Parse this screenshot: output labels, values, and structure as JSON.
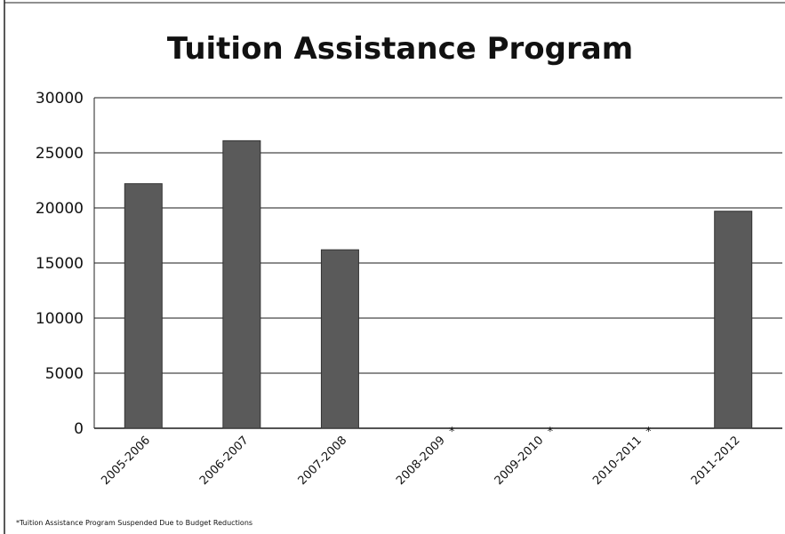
{
  "chart_data": {
    "type": "bar",
    "title": "Tuition Assistance Program",
    "xlabel": "",
    "ylabel": "",
    "categories": [
      "2005-2006",
      "2006-2007",
      "2007-2008",
      "2008-2009",
      "2009-2010",
      "2010-2011",
      "2011-2012"
    ],
    "category_markers": [
      "",
      "",
      "",
      "*",
      "*",
      "*",
      ""
    ],
    "values": [
      22200,
      26100,
      16200,
      0,
      0,
      0,
      19700
    ],
    "ylim": [
      0,
      30000
    ],
    "yticks": [
      0,
      5000,
      10000,
      15000,
      20000,
      25000,
      30000
    ],
    "grid": true,
    "legend": "none",
    "footnote": "*Tuition Assistance Program Suspended Due to Budget Reductions",
    "colors": {
      "bar": "#5a5a5a",
      "grid": "#1a1a1a",
      "frame": "#222222"
    }
  }
}
